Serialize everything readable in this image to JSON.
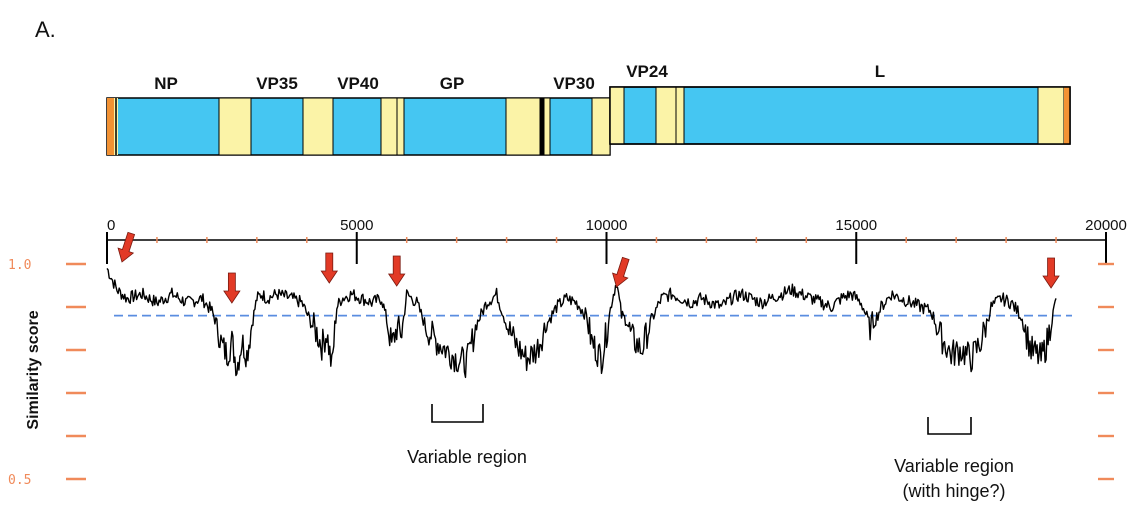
{
  "panel_label": "A.",
  "colors": {
    "gene_fill": "#45c6f2",
    "noncoding_fill": "#fbf3a7",
    "end_fill": "#f29234",
    "trace": "#000000",
    "threshold": "#5a8de0",
    "arrow": "#e23a26",
    "ytick": "#f08a5a"
  },
  "genome_map": {
    "genes": [
      {
        "name": "NP"
      },
      {
        "name": "VP35"
      },
      {
        "name": "VP40"
      },
      {
        "name": "GP"
      },
      {
        "name": "VP30"
      },
      {
        "name": "VP24"
      },
      {
        "name": "L"
      }
    ]
  },
  "chart_data": {
    "type": "line",
    "title": "",
    "xlabel": "",
    "ylabel": "Similarity score",
    "xlim": [
      0,
      20000
    ],
    "ylim": [
      0.5,
      1.0
    ],
    "x_ticks": [
      "0",
      "5000",
      "10000",
      "15000",
      "20000"
    ],
    "y_ticks": [
      "1.0",
      "0.5"
    ],
    "threshold": 0.88,
    "arrows_at": [
      300,
      2500,
      4450,
      5800,
      10200,
      18900
    ],
    "annotations": [
      {
        "text": "Variable region",
        "x_range": [
          6500,
          7500
        ]
      },
      {
        "text": [
          "Variable region",
          "(with hinge?)"
        ],
        "x_range": [
          16300,
          17200
        ]
      }
    ],
    "series": [
      {
        "x": [
          0,
          200,
          400,
          700,
          1000,
          1300,
          1600,
          1900,
          2100,
          2200,
          2300,
          2400,
          2500,
          2600,
          2700,
          2800,
          2900,
          3000,
          3100,
          3200,
          3400,
          3700,
          3900,
          4100,
          4200,
          4300,
          4400,
          4500,
          4600,
          4700,
          4900,
          5100,
          5300,
          5500,
          5600,
          5700,
          5800,
          5900,
          6000,
          6200,
          6400,
          6600,
          6800,
          7000,
          7200,
          7400,
          7600,
          7800,
          8000,
          8200,
          8400,
          8600,
          8800,
          9000,
          9200,
          9400,
          9600,
          9700,
          9800,
          9900,
          10000,
          10100,
          10200,
          10300,
          10400,
          10500,
          10700,
          10900,
          11100,
          11300,
          11500,
          11700,
          11900,
          12100,
          12300,
          12500,
          12700,
          12900,
          13100,
          13300,
          13500,
          13700,
          13900,
          14100,
          14300,
          14500,
          14700,
          14900,
          15100,
          15300,
          15500,
          15700,
          15900,
          16100,
          16300,
          16500,
          16700,
          16900,
          17100,
          17300,
          17500,
          17700,
          17900,
          18100,
          18300,
          18500,
          18600,
          18700,
          18800,
          18900,
          19000
        ],
        "y": [
          0.99,
          0.94,
          0.92,
          0.93,
          0.91,
          0.93,
          0.91,
          0.92,
          0.89,
          0.86,
          0.81,
          0.79,
          0.82,
          0.76,
          0.82,
          0.79,
          0.86,
          0.92,
          0.93,
          0.92,
          0.93,
          0.92,
          0.91,
          0.86,
          0.84,
          0.81,
          0.84,
          0.76,
          0.9,
          0.92,
          0.93,
          0.92,
          0.91,
          0.92,
          0.87,
          0.81,
          0.85,
          0.84,
          0.93,
          0.91,
          0.85,
          0.82,
          0.8,
          0.78,
          0.77,
          0.86,
          0.91,
          0.93,
          0.86,
          0.81,
          0.78,
          0.8,
          0.86,
          0.9,
          0.92,
          0.91,
          0.88,
          0.82,
          0.8,
          0.78,
          0.84,
          0.91,
          0.96,
          0.88,
          0.87,
          0.83,
          0.8,
          0.87,
          0.92,
          0.93,
          0.92,
          0.91,
          0.92,
          0.91,
          0.9,
          0.92,
          0.93,
          0.92,
          0.91,
          0.92,
          0.93,
          0.94,
          0.93,
          0.92,
          0.91,
          0.9,
          0.92,
          0.93,
          0.91,
          0.85,
          0.9,
          0.93,
          0.92,
          0.91,
          0.9,
          0.89,
          0.83,
          0.79,
          0.8,
          0.78,
          0.82,
          0.9,
          0.92,
          0.91,
          0.88,
          0.8,
          0.79,
          0.78,
          0.81,
          0.86,
          0.92
        ]
      }
    ]
  }
}
